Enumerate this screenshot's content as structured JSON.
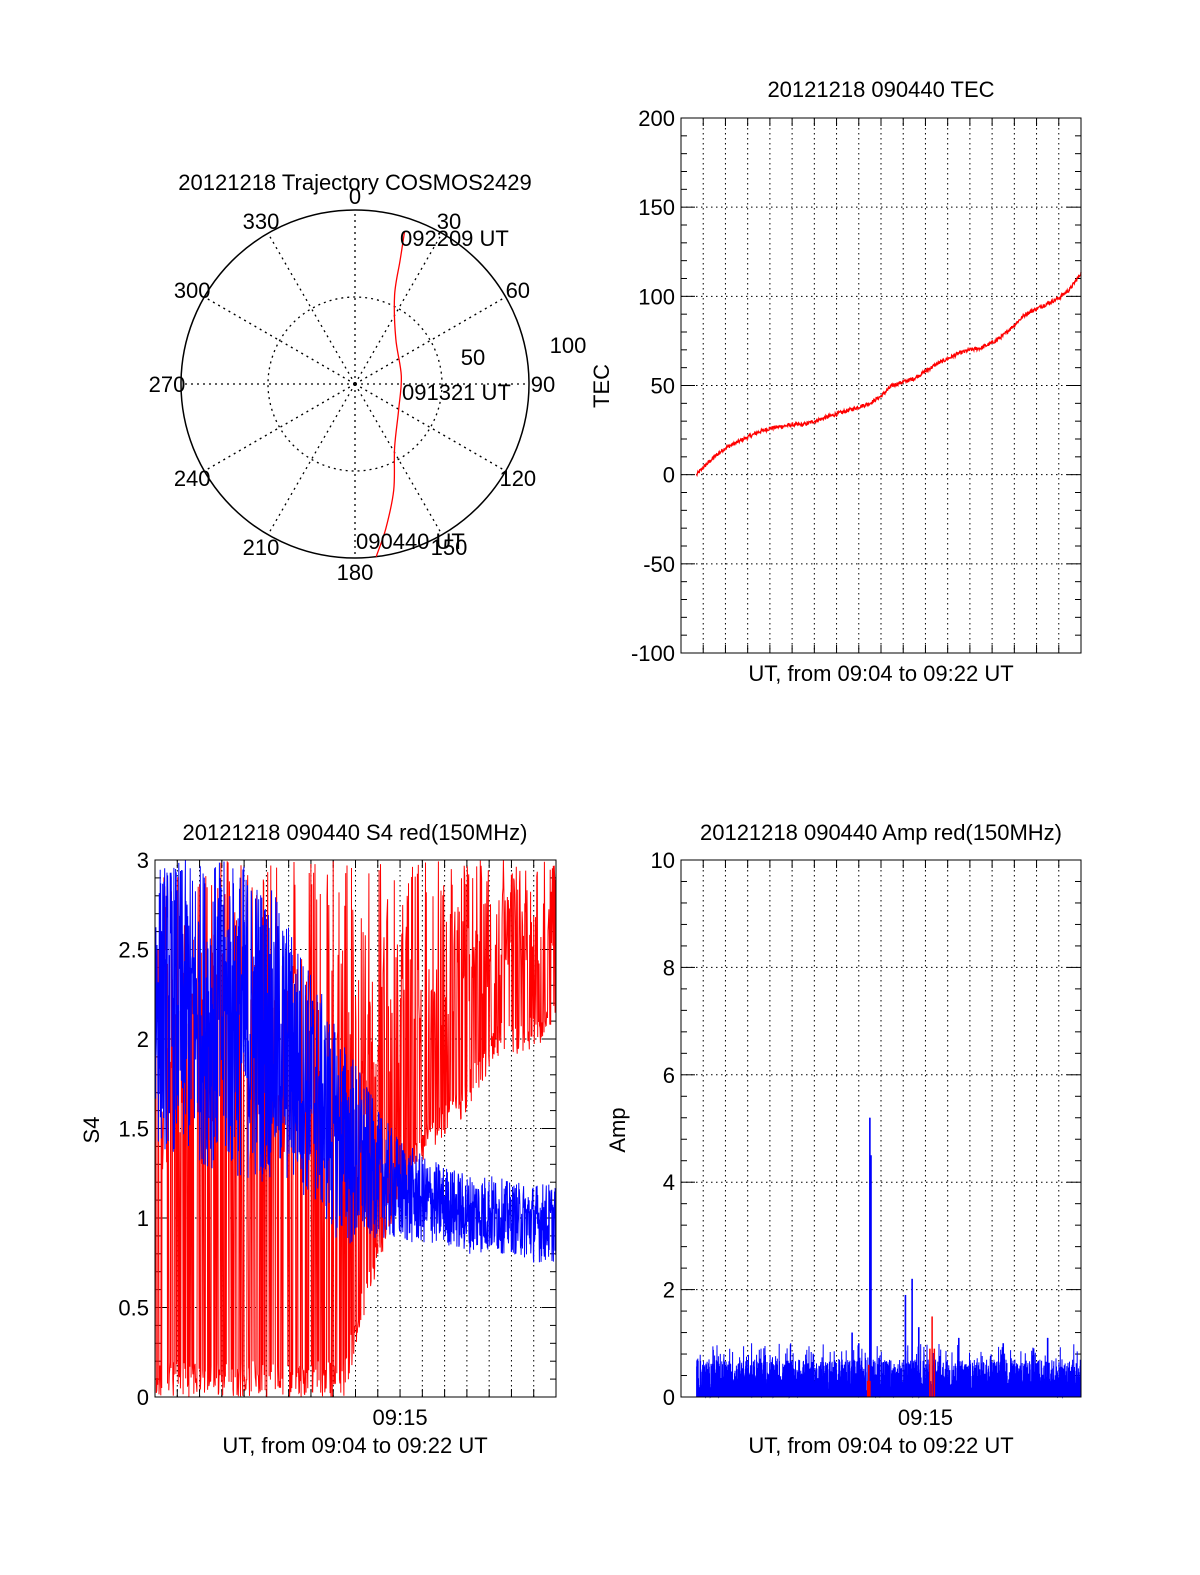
{
  "colors": {
    "red": "#ff0000",
    "blue": "#0000ff",
    "axis": "#000000",
    "grid": "#000000"
  },
  "chart_data": [
    {
      "type": "polar",
      "title": "20121218 Trajectory COSMOS2429",
      "azimuth_labels": [
        "0",
        "30",
        "60",
        "90",
        "120",
        "150",
        "180",
        "210",
        "240",
        "270",
        "300",
        "330"
      ],
      "radius_labels": [
        "50",
        "100"
      ],
      "radius_max": 100,
      "grid": true,
      "trajectory": {
        "color": "red",
        "points": [
          {
            "azimuth": 173,
            "zenith_distance": 100
          },
          {
            "azimuth": 168,
            "zenith_distance": 85
          },
          {
            "azimuth": 160,
            "zenith_distance": 65
          },
          {
            "azimuth": 148,
            "zenith_distance": 43
          },
          {
            "azimuth": 120,
            "zenith_distance": 29
          },
          {
            "azimuth": 80,
            "zenith_distance": 27
          },
          {
            "azimuth": 42,
            "zenith_distance": 35
          },
          {
            "azimuth": 24,
            "zenith_distance": 56
          },
          {
            "azimuth": 20,
            "zenith_distance": 76
          },
          {
            "azimuth": 18,
            "zenith_distance": 92
          }
        ]
      },
      "annotations": [
        "092209 UT",
        "091321 UT",
        "090440 UT"
      ]
    },
    {
      "type": "line",
      "title": "20121218 090440 TEC",
      "xlabel": "UT, from 09:04 to 09:22 UT",
      "ylabel": "TEC",
      "ylim": [
        -100,
        200
      ],
      "yticks": [
        "200",
        "150",
        "100",
        "50",
        "0",
        "-50",
        "-100"
      ],
      "xlim_minutes": [
        4.0,
        22.0
      ],
      "grid": true,
      "series": [
        {
          "color": "red",
          "x_minutes": [
            4.7,
            5.0,
            5.5,
            6.0,
            6.5,
            7.0,
            7.5,
            8.0,
            8.5,
            9.0,
            9.5,
            10.0,
            10.5,
            11.0,
            11.5,
            12.0,
            12.5,
            13.0,
            13.5,
            14.0,
            14.5,
            15.0,
            15.5,
            16.0,
            16.5,
            17.0,
            17.5,
            18.0,
            18.5,
            19.0,
            19.5,
            20.0,
            20.5,
            21.0,
            21.5,
            22.0
          ],
          "values": [
            0,
            4,
            10,
            15,
            18,
            21,
            24,
            26,
            27,
            28,
            28,
            30,
            32,
            34,
            36,
            38,
            40,
            44,
            50,
            52,
            54,
            58,
            62,
            65,
            68,
            70,
            71,
            74,
            78,
            84,
            90,
            93,
            96,
            99,
            104,
            113
          ]
        }
      ]
    },
    {
      "type": "line",
      "title": "20121218 090440 S4 red(150MHz)",
      "xlabel": "UT, from 09:04 to 09:22 UT",
      "ylabel": "S4",
      "ylim": [
        0,
        3
      ],
      "yticks": [
        "3",
        "2.5",
        "2",
        "1.5",
        "1",
        "0.5",
        "0"
      ],
      "xlim_minutes": [
        4.0,
        22.0
      ],
      "xtick_labels": [
        {
          "minute": 15,
          "label": "09:15"
        }
      ],
      "grid": true,
      "series": [
        {
          "color": "red",
          "noisy_band": true,
          "envelope": {
            "x_minutes": [
              4,
              6,
              8,
              10,
              11.5,
              12.5,
              13.5,
              14.5,
              15.5,
              16.5,
              17.5,
              18.5,
              19.5,
              20.5,
              22
            ],
            "low": [
              0,
              0,
              0,
              0,
              0,
              0,
              0.5,
              0.9,
              1.2,
              1.4,
              1.5,
              1.7,
              1.9,
              1.9,
              2.0
            ],
            "high": [
              3,
              3,
              3,
              3,
              3,
              3,
              3,
              3,
              3,
              3,
              3,
              3,
              3,
              3,
              3
            ]
          }
        },
        {
          "color": "blue",
          "noisy_band": true,
          "envelope": {
            "x_minutes": [
              4,
              6,
              8,
              9.5,
              11,
              12,
              13,
              14,
              15,
              16,
              17,
              18,
              19,
              20,
              21,
              22
            ],
            "low": [
              1.4,
              1.3,
              1.2,
              1.2,
              1.1,
              0.9,
              0.8,
              0.9,
              0.85,
              0.85,
              0.85,
              0.8,
              0.8,
              0.8,
              0.75,
              0.75
            ],
            "high": [
              3,
              3,
              3,
              2.8,
              2.4,
              2.1,
              1.9,
              1.6,
              1.45,
              1.35,
              1.3,
              1.25,
              1.25,
              1.2,
              1.2,
              1.2
            ]
          }
        }
      ]
    },
    {
      "type": "line",
      "title": "20121218 090440 Amp red(150MHz)",
      "xlabel": "UT, from 09:04 to 09:22 UT",
      "ylabel": "Amp",
      "ylim": [
        0,
        10
      ],
      "yticks": [
        "10",
        "8",
        "6",
        "4",
        "2",
        "0"
      ],
      "xlim_minutes": [
        4.0,
        22.0
      ],
      "xtick_labels": [
        {
          "minute": 15,
          "label": "09:15"
        }
      ],
      "grid": true,
      "series": [
        {
          "color": "red",
          "x_minutes": [
            12.4,
            12.45,
            12.5,
            15.2,
            15.3,
            15.4
          ],
          "values": [
            0.3,
            0.6,
            0.3,
            0.9,
            1.5,
            0.9
          ]
        },
        {
          "color": "blue",
          "noisy_band": true,
          "baseline_high": 0.7,
          "spikes": [
            {
              "minute": 11.7,
              "value": 1.2
            },
            {
              "minute": 12.0,
              "value": 1.0
            },
            {
              "minute": 12.5,
              "value": 5.2
            },
            {
              "minute": 12.55,
              "value": 4.5
            },
            {
              "minute": 14.1,
              "value": 1.9
            },
            {
              "minute": 14.4,
              "value": 2.2
            },
            {
              "minute": 14.7,
              "value": 1.3
            },
            {
              "minute": 16.5,
              "value": 1.1
            },
            {
              "minute": 18.5,
              "value": 1.0
            },
            {
              "minute": 20.5,
              "value": 1.1
            }
          ]
        }
      ]
    }
  ]
}
